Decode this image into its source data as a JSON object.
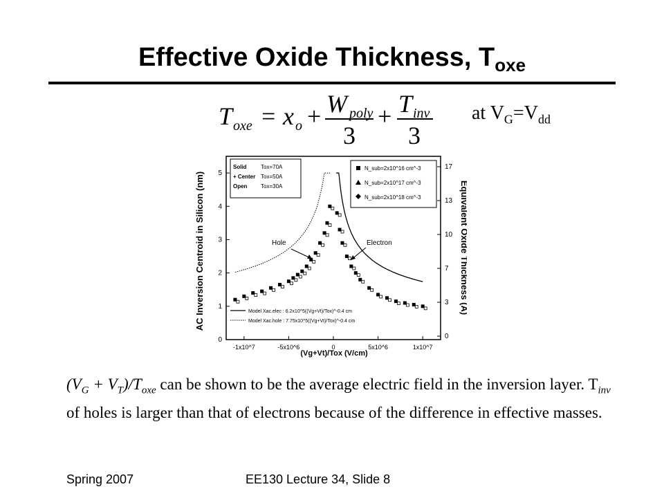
{
  "title": {
    "main": "Effective Oxide Thickness, T",
    "subscript": "oxe"
  },
  "equation": {
    "lhs_symbol": "T",
    "lhs_sub": "oxe",
    "equals": "=",
    "term1": "x",
    "term1_sub": "o",
    "plus1": "+",
    "frac1_num": "W",
    "frac1_num_sub": "poly",
    "frac1_den": "3",
    "plus2": "+",
    "frac2_num": "T",
    "frac2_num_sub": "inv",
    "frac2_den": "3"
  },
  "condition": {
    "prefix": "at V",
    "sub1": "G",
    "mid": "=V",
    "sub2": "dd"
  },
  "chart_data": {
    "type": "scatter",
    "xlabel": "(Vg+Vt)/Tox (V/cm)",
    "ylabel": "AC Inversion Centroid in Silicon (nm)",
    "y2label": "Equivalent Oxide Thickness (A)",
    "x_ticks": [
      "-1x10^7",
      "-5x10^6",
      "0",
      "5x10^6",
      "1x10^7"
    ],
    "y_ticks": [
      "0",
      "1",
      "2",
      "3",
      "4",
      "5"
    ],
    "y2_ticks": [
      "0",
      "3",
      "7",
      "10",
      "13",
      "17"
    ],
    "xlim": [
      -12000000,
      12000000
    ],
    "ylim": [
      0,
      5.5
    ],
    "legend_left": [
      {
        "label": "Solid",
        "value": "Tox=70A"
      },
      {
        "label": "+ Center",
        "value": "Tox=50A"
      },
      {
        "label": "Open",
        "value": "Tox=30A"
      }
    ],
    "legend_right": [
      {
        "marker": "square",
        "label": "N_sub=2x10^16 cm^-3"
      },
      {
        "marker": "triangle",
        "label": "N_sub=2x10^17 cm^-3"
      },
      {
        "marker": "diamond",
        "label": "N_sub=2x10^18 cm^-3"
      }
    ],
    "annotations": [
      "Hole",
      "Electron"
    ],
    "model_legend": [
      {
        "style": "solid",
        "label": "Model Xac.elec : 6.2x10^5((Vg+Vt)/Tox)^-0.4 cm"
      },
      {
        "style": "dotted",
        "label": "Model Xac.hole : 7.75x10^5((Vg+Vt)/Tox)^-0.4 cm"
      }
    ],
    "series": [
      {
        "name": "Hole",
        "x": [
          -11000000,
          -10000000,
          -9000000,
          -8000000,
          -7000000,
          -6000000,
          -5000000,
          -4500000,
          -4000000,
          -3500000,
          -3000000,
          -2500000,
          -2000000,
          -1500000,
          -1000000,
          -700000,
          -400000
        ],
        "y": [
          1.2,
          1.3,
          1.4,
          1.45,
          1.55,
          1.65,
          1.75,
          1.85,
          1.95,
          2.05,
          2.2,
          2.4,
          2.6,
          2.9,
          3.2,
          3.5,
          4.0
        ]
      },
      {
        "name": "Electron",
        "x": [
          400000,
          700000,
          1000000,
          1500000,
          2000000,
          2500000,
          3000000,
          4000000,
          5000000,
          6000000,
          7000000,
          8000000,
          9000000,
          10000000
        ],
        "y": [
          3.8,
          3.3,
          2.9,
          2.5,
          2.2,
          2.0,
          1.8,
          1.55,
          1.35,
          1.25,
          1.15,
          1.1,
          1.05,
          1.0
        ]
      }
    ]
  },
  "body": {
    "p1_open": "(V",
    "p1_sub_g": "G",
    "p1_plus": " + V",
    "p1_sub_t": "T",
    "p1_close": ")/T",
    "p1_sub_oxe": "oxe",
    "p1_rest": " can be shown to be the average electric field in the inversion layer. T",
    "p1_sub_inv": "inv",
    "p1_end": " of holes is larger than that of electrons because of the difference in effective masses."
  },
  "footer": {
    "left": "Spring 2007",
    "center": "EE130 Lecture 34, Slide 8"
  }
}
